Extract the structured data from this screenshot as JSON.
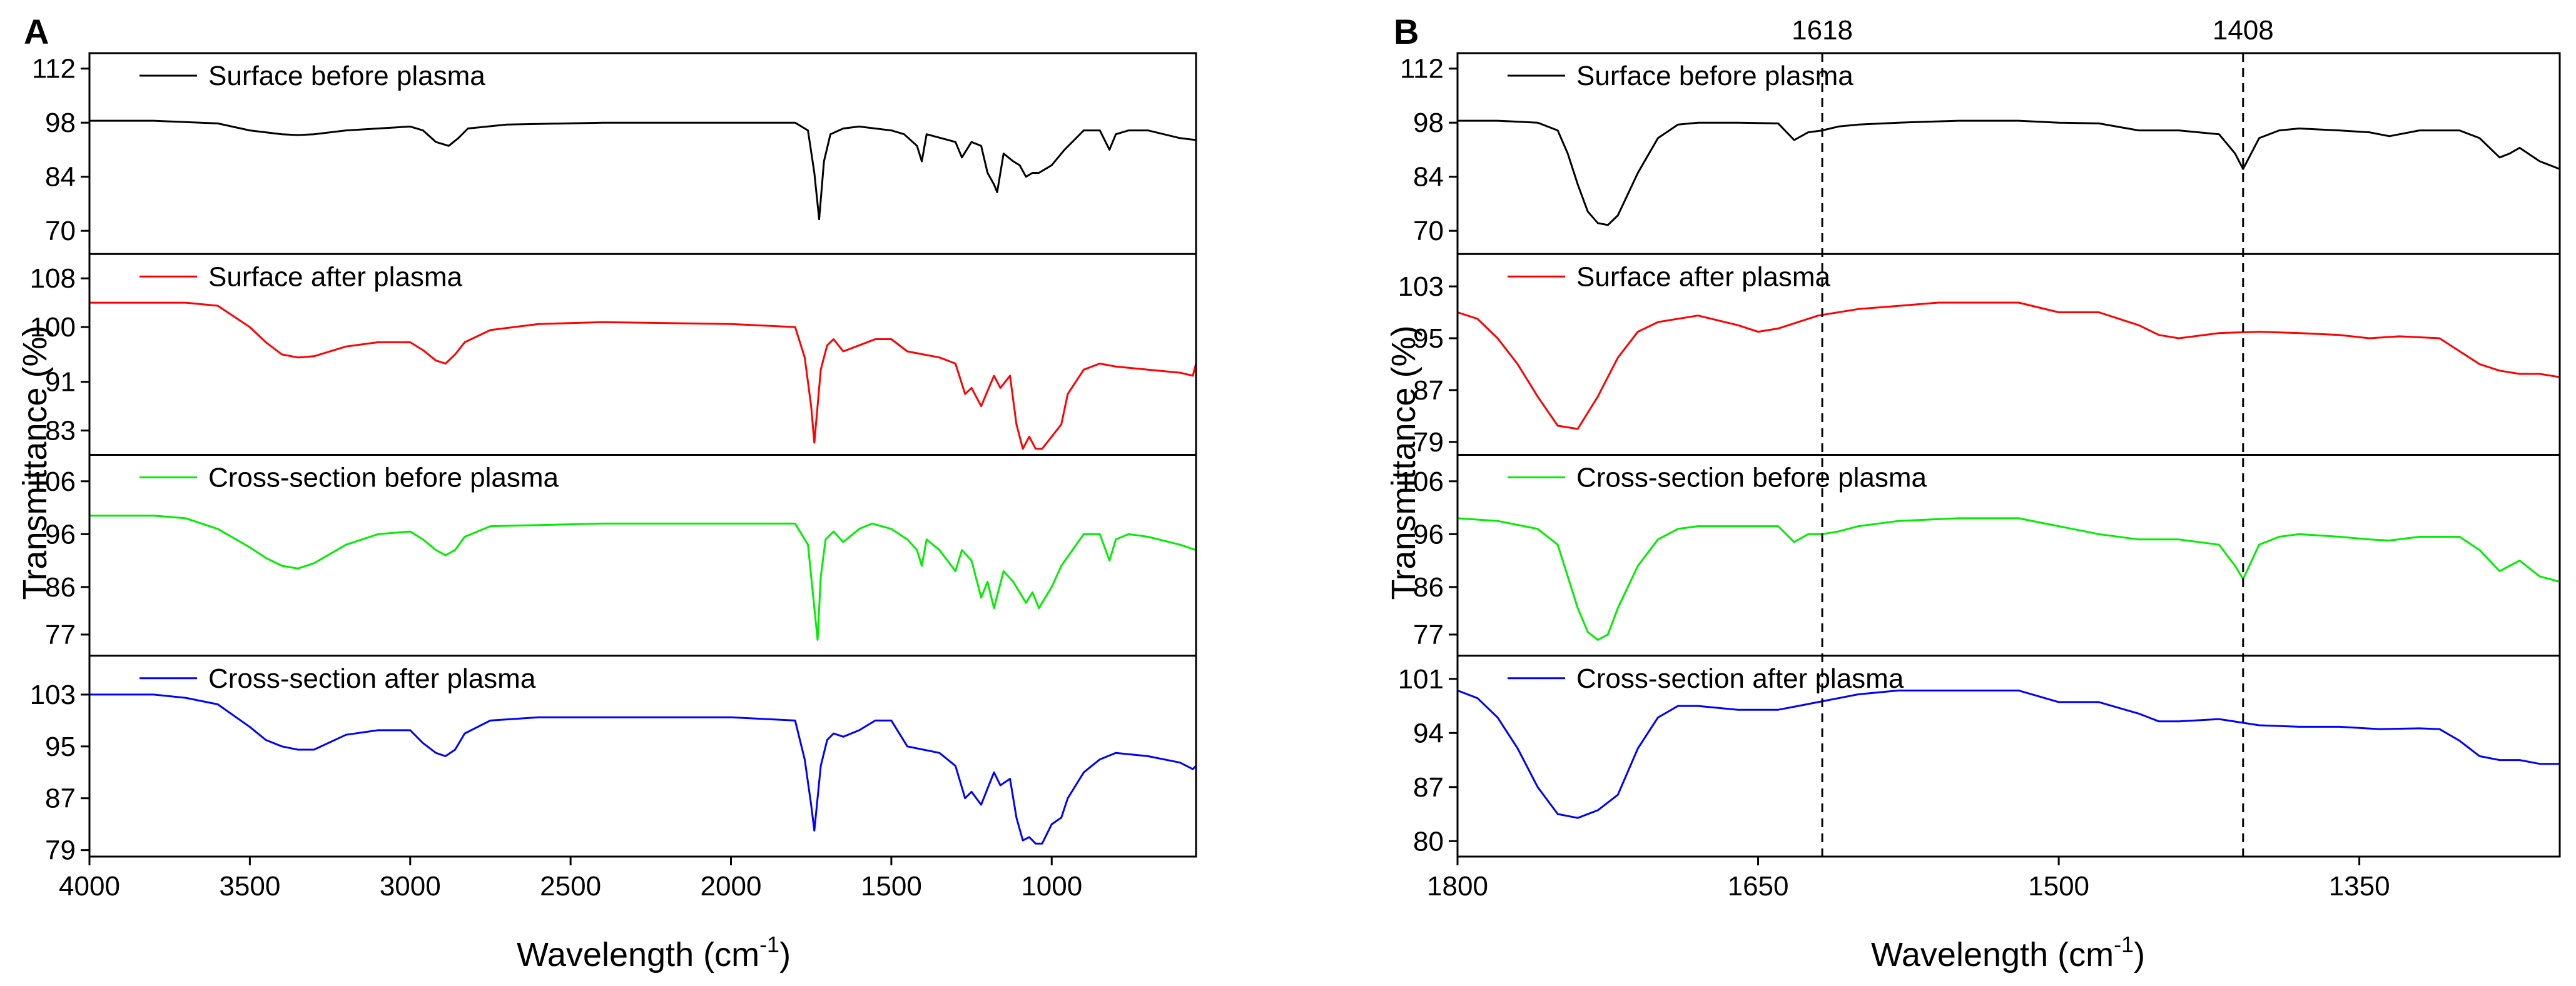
{
  "chart_data": [
    {
      "type": "line",
      "panel": "A",
      "xlabel": "Wavelength (cm",
      "xlabel_sup": "-1",
      "xlabel_end": ")",
      "ylabel": "Transmittance (%)",
      "xlim": [
        4000,
        550
      ],
      "xticks": [
        4000,
        3500,
        3000,
        2500,
        2000,
        1500,
        1000
      ],
      "xtick_labels": [
        "4000",
        "3500",
        "3000",
        "2500",
        "2000",
        "1500",
        "1000"
      ],
      "subplots": [
        {
          "name": "Surface before plasma",
          "color": "#000000",
          "ylim": [
            64,
            116
          ],
          "yticks": [
            70,
            84,
            98,
            112
          ],
          "ytick_labels": [
            "70",
            "84",
            "98",
            "112"
          ],
          "x": [
            4000,
            3800,
            3600,
            3500,
            3400,
            3350,
            3300,
            3200,
            3100,
            3000,
            2960,
            2920,
            2880,
            2850,
            2820,
            2700,
            2400,
            2000,
            1800,
            1760,
            1740,
            1725,
            1710,
            1690,
            1650,
            1600,
            1500,
            1460,
            1420,
            1405,
            1390,
            1300,
            1280,
            1250,
            1220,
            1200,
            1180,
            1170,
            1150,
            1120,
            1100,
            1080,
            1060,
            1040,
            1000,
            960,
            900,
            850,
            820,
            800,
            760,
            700,
            600,
            550
          ],
          "y": [
            98.5,
            98.5,
            97.8,
            96,
            95,
            94.8,
            95,
            96,
            96.5,
            97,
            96,
            93,
            92,
            94,
            96.5,
            97.5,
            98,
            98,
            98,
            96,
            85,
            73,
            88,
            95,
            96.5,
            97,
            96,
            95,
            92,
            88,
            95,
            93,
            89,
            93,
            92,
            85,
            82,
            80,
            90,
            88,
            87,
            84,
            85,
            85,
            87,
            91,
            96,
            96,
            91,
            95,
            96,
            96,
            94,
            93.5
          ]
        },
        {
          "name": "Surface after plasma",
          "color": "#ff0000",
          "ylim": [
            79,
            112
          ],
          "yticks": [
            83,
            91,
            100,
            108
          ],
          "ytick_labels": [
            "83",
            "91",
            "100",
            "108"
          ],
          "x": [
            4000,
            3800,
            3700,
            3600,
            3500,
            3450,
            3400,
            3350,
            3300,
            3200,
            3100,
            3000,
            2960,
            2920,
            2890,
            2860,
            2830,
            2750,
            2600,
            2400,
            2000,
            1800,
            1770,
            1750,
            1740,
            1720,
            1700,
            1680,
            1650,
            1600,
            1550,
            1500,
            1450,
            1400,
            1350,
            1300,
            1270,
            1250,
            1220,
            1200,
            1180,
            1160,
            1130,
            1110,
            1090,
            1070,
            1050,
            1030,
            1000,
            970,
            950,
            900,
            850,
            800,
            700,
            600,
            560,
            550
          ],
          "y": [
            104,
            104,
            104,
            103.5,
            100,
            97.5,
            95.5,
            95,
            95.2,
            96.8,
            97.5,
            97.5,
            96.2,
            94.5,
            94,
            95.5,
            97.5,
            99.5,
            100.5,
            100.8,
            100.5,
            100,
            95,
            87,
            81,
            93,
            97,
            98,
            96,
            97,
            98,
            98,
            96,
            95.5,
            95,
            94,
            89,
            90,
            87,
            89.5,
            92,
            90,
            92,
            84,
            80,
            82,
            80,
            80,
            82,
            84,
            89,
            93,
            94,
            93.5,
            93,
            92.5,
            92,
            94
          ]
        },
        {
          "name": "Cross-section before plasma",
          "color": "#00ee00",
          "ylim": [
            73,
            111
          ],
          "yticks": [
            77,
            86,
            96,
            106
          ],
          "ytick_labels": [
            "77",
            "86",
            "96",
            "106"
          ],
          "x": [
            4000,
            3800,
            3700,
            3600,
            3500,
            3450,
            3400,
            3350,
            3300,
            3200,
            3100,
            3000,
            2960,
            2920,
            2890,
            2860,
            2830,
            2750,
            2400,
            2000,
            1800,
            1760,
            1745,
            1730,
            1720,
            1705,
            1680,
            1650,
            1620,
            1600,
            1560,
            1500,
            1450,
            1420,
            1405,
            1390,
            1350,
            1300,
            1280,
            1250,
            1220,
            1200,
            1180,
            1150,
            1120,
            1100,
            1080,
            1060,
            1040,
            1000,
            970,
            900,
            850,
            820,
            800,
            760,
            700,
            600,
            550
          ],
          "y": [
            99.5,
            99.5,
            99,
            97,
            93.5,
            91.5,
            90,
            89.5,
            90.5,
            94,
            96,
            96.5,
            95,
            93,
            92,
            93,
            95.5,
            97.5,
            98,
            98,
            98,
            94,
            85,
            76,
            88,
            95,
            96.5,
            94.5,
            96,
            97,
            98,
            97,
            95,
            93,
            90,
            95,
            93,
            89,
            93,
            91,
            84,
            87,
            82,
            89,
            87,
            85,
            83,
            85,
            82,
            86,
            90,
            96,
            96,
            91,
            95,
            96,
            95.5,
            94,
            93
          ]
        },
        {
          "name": "Cross-section after plasma",
          "color": "#0000ff",
          "ylim": [
            78,
            109
          ],
          "yticks": [
            79,
            87,
            95,
            103
          ],
          "ytick_labels": [
            "79",
            "87",
            "95",
            "103"
          ],
          "x": [
            4000,
            3800,
            3700,
            3600,
            3500,
            3450,
            3400,
            3350,
            3300,
            3200,
            3100,
            3000,
            2960,
            2920,
            2890,
            2860,
            2830,
            2750,
            2600,
            2400,
            2000,
            1800,
            1770,
            1750,
            1740,
            1720,
            1700,
            1680,
            1650,
            1600,
            1550,
            1500,
            1450,
            1400,
            1350,
            1300,
            1270,
            1250,
            1220,
            1200,
            1180,
            1160,
            1130,
            1110,
            1090,
            1070,
            1050,
            1030,
            1000,
            970,
            950,
            900,
            850,
            800,
            700,
            600,
            560,
            550
          ],
          "y": [
            103,
            103,
            102.5,
            101.5,
            98,
            96,
            95,
            94.5,
            94.5,
            96.8,
            97.5,
            97.5,
            95.5,
            94,
            93.5,
            94.5,
            97,
            99,
            99.5,
            99.5,
            99.5,
            99,
            93,
            86,
            82,
            92,
            96,
            97,
            96.5,
            97.5,
            99,
            99,
            95,
            94.5,
            94,
            92,
            87,
            88,
            86,
            88.5,
            91,
            89,
            90,
            84,
            80.5,
            81,
            80,
            80,
            83,
            84,
            87,
            91,
            93,
            94,
            93.5,
            92.5,
            91.5,
            92
          ]
        }
      ]
    },
    {
      "type": "line",
      "panel": "B",
      "xlabel": "Wavelength (cm",
      "xlabel_sup": "-1",
      "xlabel_end": ")",
      "ylabel": "Transmittance (%)",
      "xlim": [
        1800,
        1250
      ],
      "xticks": [
        1800,
        1650,
        1500,
        1350
      ],
      "xtick_labels": [
        "1800",
        "1650",
        "1500",
        "1350"
      ],
      "reference_lines": [
        {
          "x": 1618,
          "label": "1618"
        },
        {
          "x": 1408,
          "label": "1408"
        }
      ],
      "subplots": [
        {
          "name": "Surface before plasma",
          "color": "#000000",
          "ylim": [
            64,
            116
          ],
          "yticks": [
            70,
            84,
            98,
            112
          ],
          "ytick_labels": [
            "70",
            "84",
            "98",
            "112"
          ],
          "x": [
            1800,
            1780,
            1760,
            1750,
            1745,
            1740,
            1735,
            1730,
            1725,
            1720,
            1710,
            1700,
            1690,
            1680,
            1660,
            1640,
            1632,
            1625,
            1618,
            1610,
            1600,
            1580,
            1550,
            1520,
            1500,
            1480,
            1460,
            1440,
            1420,
            1412,
            1408,
            1400,
            1390,
            1380,
            1360,
            1345,
            1335,
            1320,
            1300,
            1290,
            1280,
            1275,
            1270,
            1260,
            1250
          ],
          "y": [
            98.5,
            98.5,
            98,
            96,
            90,
            82,
            75,
            72,
            71.5,
            74,
            85,
            94,
            97.5,
            98,
            98,
            97.8,
            93.5,
            95.5,
            96,
            97,
            97.5,
            98,
            98.5,
            98.5,
            98,
            97.8,
            96,
            96,
            95,
            90,
            86,
            94,
            96,
            96.5,
            96,
            95.5,
            94.5,
            96,
            96,
            94,
            89,
            90,
            91.5,
            88,
            86
          ]
        },
        {
          "name": "Surface after plasma",
          "color": "#ff0000",
          "ylim": [
            77,
            108
          ],
          "yticks": [
            79,
            87,
            95,
            103
          ],
          "ytick_labels": [
            "79",
            "87",
            "95",
            "103"
          ],
          "x": [
            1800,
            1790,
            1780,
            1770,
            1760,
            1750,
            1740,
            1730,
            1720,
            1710,
            1700,
            1680,
            1660,
            1650,
            1640,
            1630,
            1620,
            1600,
            1580,
            1560,
            1540,
            1520,
            1500,
            1480,
            1460,
            1450,
            1440,
            1420,
            1400,
            1380,
            1360,
            1345,
            1330,
            1310,
            1300,
            1290,
            1280,
            1270,
            1260,
            1250
          ],
          "y": [
            99,
            98,
            95,
            91,
            86,
            81.5,
            81,
            86,
            92,
            96,
            97.5,
            98.5,
            97,
            96,
            96.5,
            97.5,
            98.5,
            99.5,
            100,
            100.5,
            100.5,
            100.5,
            99,
            99,
            97,
            95.5,
            95,
            95.8,
            96,
            95.8,
            95.5,
            95,
            95.3,
            95,
            93,
            91,
            90,
            89.5,
            89.5,
            89
          ]
        },
        {
          "name": "Cross-section before plasma",
          "color": "#00ee00",
          "ylim": [
            73,
            111
          ],
          "yticks": [
            77,
            86,
            96,
            106
          ],
          "ytick_labels": [
            "77",
            "86",
            "96",
            "106"
          ],
          "x": [
            1800,
            1780,
            1760,
            1750,
            1745,
            1740,
            1735,
            1730,
            1725,
            1720,
            1710,
            1700,
            1690,
            1680,
            1660,
            1640,
            1632,
            1625,
            1618,
            1610,
            1600,
            1580,
            1550,
            1520,
            1500,
            1480,
            1460,
            1440,
            1420,
            1412,
            1408,
            1400,
            1390,
            1380,
            1360,
            1345,
            1335,
            1320,
            1300,
            1290,
            1280,
            1275,
            1270,
            1260,
            1250
          ],
          "y": [
            99,
            98.5,
            97,
            94,
            88,
            82,
            77.5,
            76,
            77,
            82,
            90,
            95,
            97,
            97.5,
            97.5,
            97.5,
            94.5,
            96,
            96,
            96.5,
            97.5,
            98.5,
            99,
            99,
            97.5,
            96,
            95,
            95,
            94,
            90,
            87.5,
            94,
            95.5,
            96,
            95.5,
            95,
            94.8,
            95.5,
            95.5,
            93,
            89,
            90,
            91,
            88,
            87
          ]
        },
        {
          "name": "Cross-section after plasma",
          "color": "#0000ff",
          "ylim": [
            78,
            104
          ],
          "yticks": [
            80,
            87,
            94,
            101
          ],
          "ytick_labels": [
            "80",
            "87",
            "94",
            "101"
          ],
          "x": [
            1800,
            1790,
            1780,
            1770,
            1760,
            1750,
            1740,
            1730,
            1720,
            1710,
            1700,
            1690,
            1680,
            1660,
            1640,
            1630,
            1620,
            1600,
            1580,
            1560,
            1540,
            1520,
            1500,
            1480,
            1460,
            1450,
            1440,
            1420,
            1400,
            1380,
            1360,
            1340,
            1320,
            1310,
            1300,
            1290,
            1280,
            1270,
            1260,
            1250
          ],
          "y": [
            99.5,
            98.5,
            96,
            92,
            87,
            83.5,
            83,
            84,
            86,
            92,
            96,
            97.5,
            97.5,
            97,
            97,
            97.5,
            98,
            99,
            99.5,
            99.5,
            99.5,
            99.5,
            98,
            98,
            96.5,
            95.5,
            95.5,
            95.8,
            95,
            94.8,
            94.8,
            94.5,
            94.6,
            94.5,
            93,
            91,
            90.5,
            90.5,
            90,
            90
          ]
        }
      ]
    }
  ]
}
